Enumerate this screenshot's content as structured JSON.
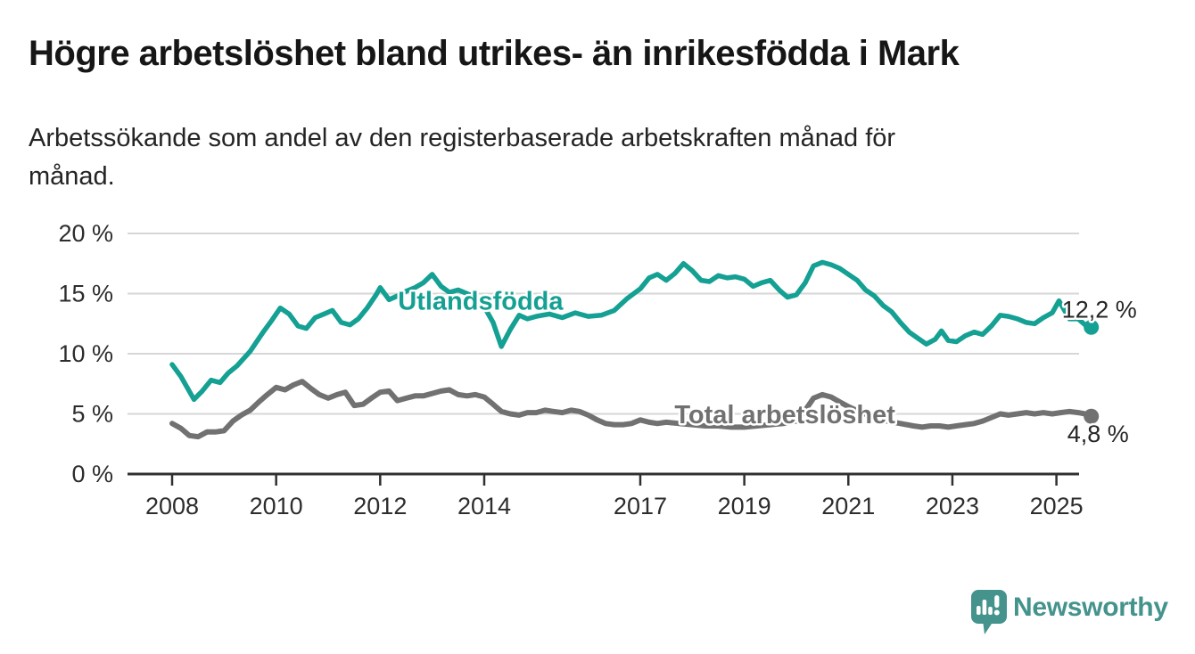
{
  "header": {
    "title": "Högre arbetslöshet bland utrikes- än inrikesfödda i Mark",
    "subtitle_line1": "Arbetssökande som andel av den registerbaserade arbetskraften månad för",
    "subtitle_line2": "månad."
  },
  "chart_data": {
    "type": "line",
    "title": "Högre arbetslöshet bland utrikes- än inrikesfödda i Mark",
    "subtitle": "Arbetssökande som andel av den registerbaserade arbetskraften månad för månad.",
    "xlabel": "",
    "ylabel": "",
    "x_unit": "year (monthly observations)",
    "xlim": [
      2007.5,
      2026.4
    ],
    "ylim": [
      0,
      20
    ],
    "grid": "horizontal",
    "legend_position": "inline-labels",
    "y_ticks": [
      {
        "v": 20,
        "label": "20 %"
      },
      {
        "v": 15,
        "label": "15 %"
      },
      {
        "v": 10,
        "label": "10 %"
      },
      {
        "v": 5,
        "label": "5 %"
      },
      {
        "v": 0,
        "label": "0 %"
      }
    ],
    "x_ticks": [
      {
        "v": 2008,
        "label": "2008"
      },
      {
        "v": 2010,
        "label": "2010"
      },
      {
        "v": 2012,
        "label": "2012"
      },
      {
        "v": 2014,
        "label": "2014"
      },
      {
        "v": 2017,
        "label": "2017"
      },
      {
        "v": 2019,
        "label": "2019"
      },
      {
        "v": 2021,
        "label": "2021"
      },
      {
        "v": 2023,
        "label": "2023"
      },
      {
        "v": 2025,
        "label": "2025"
      }
    ],
    "series": [
      {
        "name": "Utlandsfödda",
        "color": "#14a093",
        "line_width": 5.5,
        "end_value": 12.2,
        "end_label": "12,2 %",
        "inline_label": {
          "text": "Utlandsfödda",
          "x": 2013.93,
          "y": 14.4
        },
        "points": [
          [
            2008.0,
            9.1
          ],
          [
            2008.17,
            8.1
          ],
          [
            2008.42,
            6.2
          ],
          [
            2008.58,
            6.9
          ],
          [
            2008.75,
            7.8
          ],
          [
            2008.92,
            7.6
          ],
          [
            2009.08,
            8.4
          ],
          [
            2009.25,
            9.0
          ],
          [
            2009.5,
            10.2
          ],
          [
            2009.75,
            11.8
          ],
          [
            2009.92,
            12.8
          ],
          [
            2010.08,
            13.8
          ],
          [
            2010.25,
            13.3
          ],
          [
            2010.42,
            12.3
          ],
          [
            2010.58,
            12.1
          ],
          [
            2010.75,
            13.0
          ],
          [
            2010.92,
            13.3
          ],
          [
            2011.08,
            13.6
          ],
          [
            2011.25,
            12.6
          ],
          [
            2011.42,
            12.4
          ],
          [
            2011.58,
            12.9
          ],
          [
            2011.75,
            13.8
          ],
          [
            2011.92,
            14.9
          ],
          [
            2012.0,
            15.5
          ],
          [
            2012.17,
            14.5
          ],
          [
            2012.33,
            14.8
          ],
          [
            2012.5,
            15.2
          ],
          [
            2012.67,
            15.5
          ],
          [
            2012.83,
            15.9
          ],
          [
            2013.0,
            16.6
          ],
          [
            2013.17,
            15.6
          ],
          [
            2013.33,
            15.1
          ],
          [
            2013.5,
            15.3
          ],
          [
            2013.67,
            15.0
          ],
          [
            2013.83,
            14.7
          ],
          [
            2014.0,
            13.9
          ],
          [
            2014.17,
            12.6
          ],
          [
            2014.33,
            10.6
          ],
          [
            2014.5,
            12.0
          ],
          [
            2014.67,
            13.2
          ],
          [
            2014.83,
            12.9
          ],
          [
            2015.0,
            13.1
          ],
          [
            2015.25,
            13.3
          ],
          [
            2015.5,
            13.0
          ],
          [
            2015.75,
            13.4
          ],
          [
            2016.0,
            13.1
          ],
          [
            2016.25,
            13.2
          ],
          [
            2016.5,
            13.6
          ],
          [
            2016.75,
            14.6
          ],
          [
            2017.0,
            15.4
          ],
          [
            2017.17,
            16.3
          ],
          [
            2017.33,
            16.6
          ],
          [
            2017.5,
            16.1
          ],
          [
            2017.67,
            16.7
          ],
          [
            2017.83,
            17.5
          ],
          [
            2018.0,
            16.9
          ],
          [
            2018.17,
            16.1
          ],
          [
            2018.33,
            16.0
          ],
          [
            2018.5,
            16.5
          ],
          [
            2018.67,
            16.3
          ],
          [
            2018.83,
            16.4
          ],
          [
            2019.0,
            16.2
          ],
          [
            2019.17,
            15.6
          ],
          [
            2019.33,
            15.9
          ],
          [
            2019.5,
            16.1
          ],
          [
            2019.67,
            15.3
          ],
          [
            2019.83,
            14.7
          ],
          [
            2020.0,
            14.9
          ],
          [
            2020.17,
            15.9
          ],
          [
            2020.33,
            17.3
          ],
          [
            2020.5,
            17.6
          ],
          [
            2020.67,
            17.4
          ],
          [
            2020.83,
            17.1
          ],
          [
            2021.0,
            16.6
          ],
          [
            2021.17,
            16.1
          ],
          [
            2021.33,
            15.3
          ],
          [
            2021.5,
            14.8
          ],
          [
            2021.67,
            14.0
          ],
          [
            2021.83,
            13.5
          ],
          [
            2022.0,
            12.6
          ],
          [
            2022.17,
            11.8
          ],
          [
            2022.33,
            11.3
          ],
          [
            2022.5,
            10.8
          ],
          [
            2022.67,
            11.2
          ],
          [
            2022.79,
            11.9
          ],
          [
            2022.92,
            11.1
          ],
          [
            2023.08,
            11.0
          ],
          [
            2023.25,
            11.5
          ],
          [
            2023.42,
            11.8
          ],
          [
            2023.58,
            11.6
          ],
          [
            2023.75,
            12.3
          ],
          [
            2023.92,
            13.2
          ],
          [
            2024.08,
            13.1
          ],
          [
            2024.25,
            12.9
          ],
          [
            2024.42,
            12.6
          ],
          [
            2024.58,
            12.5
          ],
          [
            2024.75,
            13.0
          ],
          [
            2024.92,
            13.4
          ],
          [
            2025.05,
            14.4
          ],
          [
            2025.25,
            12.9
          ],
          [
            2025.42,
            12.9
          ],
          [
            2025.55,
            12.4
          ],
          [
            2025.67,
            12.2
          ]
        ]
      },
      {
        "name": "Total arbetslöshet",
        "color": "#717171",
        "line_width": 6,
        "end_value": 4.8,
        "end_label": "4,8 %",
        "inline_label": {
          "text": "Total arbetslöshet",
          "x": 2019.78,
          "y": 4.95
        },
        "points": [
          [
            2008.0,
            4.2
          ],
          [
            2008.17,
            3.8
          ],
          [
            2008.33,
            3.2
          ],
          [
            2008.5,
            3.1
          ],
          [
            2008.67,
            3.5
          ],
          [
            2008.83,
            3.5
          ],
          [
            2009.0,
            3.6
          ],
          [
            2009.17,
            4.4
          ],
          [
            2009.33,
            4.9
          ],
          [
            2009.5,
            5.3
          ],
          [
            2009.67,
            6.0
          ],
          [
            2009.83,
            6.6
          ],
          [
            2010.0,
            7.2
          ],
          [
            2010.17,
            7.0
          ],
          [
            2010.33,
            7.4
          ],
          [
            2010.5,
            7.7
          ],
          [
            2010.67,
            7.1
          ],
          [
            2010.83,
            6.6
          ],
          [
            2011.0,
            6.3
          ],
          [
            2011.17,
            6.6
          ],
          [
            2011.33,
            6.8
          ],
          [
            2011.5,
            5.7
          ],
          [
            2011.67,
            5.8
          ],
          [
            2011.83,
            6.3
          ],
          [
            2012.0,
            6.8
          ],
          [
            2012.17,
            6.9
          ],
          [
            2012.33,
            6.1
          ],
          [
            2012.5,
            6.3
          ],
          [
            2012.67,
            6.5
          ],
          [
            2012.83,
            6.5
          ],
          [
            2013.0,
            6.7
          ],
          [
            2013.17,
            6.9
          ],
          [
            2013.33,
            7.0
          ],
          [
            2013.5,
            6.6
          ],
          [
            2013.67,
            6.5
          ],
          [
            2013.83,
            6.6
          ],
          [
            2014.0,
            6.4
          ],
          [
            2014.17,
            5.8
          ],
          [
            2014.33,
            5.2
          ],
          [
            2014.5,
            5.0
          ],
          [
            2014.67,
            4.9
          ],
          [
            2014.83,
            5.1
          ],
          [
            2015.0,
            5.1
          ],
          [
            2015.17,
            5.3
          ],
          [
            2015.33,
            5.2
          ],
          [
            2015.5,
            5.1
          ],
          [
            2015.67,
            5.3
          ],
          [
            2015.83,
            5.2
          ],
          [
            2016.0,
            4.9
          ],
          [
            2016.17,
            4.5
          ],
          [
            2016.33,
            4.2
          ],
          [
            2016.5,
            4.1
          ],
          [
            2016.67,
            4.1
          ],
          [
            2016.83,
            4.2
          ],
          [
            2017.0,
            4.5
          ],
          [
            2017.17,
            4.3
          ],
          [
            2017.33,
            4.2
          ],
          [
            2017.5,
            4.3
          ],
          [
            2017.75,
            4.2
          ],
          [
            2018.0,
            4.1
          ],
          [
            2018.25,
            4.0
          ],
          [
            2018.5,
            4.0
          ],
          [
            2018.75,
            3.9
          ],
          [
            2019.0,
            3.9
          ],
          [
            2019.25,
            4.0
          ],
          [
            2019.5,
            4.1
          ],
          [
            2019.75,
            4.2
          ],
          [
            2020.0,
            4.4
          ],
          [
            2020.17,
            5.3
          ],
          [
            2020.33,
            6.3
          ],
          [
            2020.5,
            6.6
          ],
          [
            2020.67,
            6.4
          ],
          [
            2020.83,
            6.0
          ],
          [
            2021.0,
            5.6
          ],
          [
            2021.25,
            5.1
          ],
          [
            2021.5,
            4.7
          ],
          [
            2021.75,
            4.4
          ],
          [
            2022.0,
            4.2
          ],
          [
            2022.25,
            4.0
          ],
          [
            2022.42,
            3.9
          ],
          [
            2022.58,
            4.0
          ],
          [
            2022.75,
            4.0
          ],
          [
            2022.92,
            3.9
          ],
          [
            2023.08,
            4.0
          ],
          [
            2023.25,
            4.1
          ],
          [
            2023.42,
            4.2
          ],
          [
            2023.58,
            4.4
          ],
          [
            2023.75,
            4.7
          ],
          [
            2023.92,
            5.0
          ],
          [
            2024.08,
            4.9
          ],
          [
            2024.25,
            5.0
          ],
          [
            2024.42,
            5.1
          ],
          [
            2024.58,
            5.0
          ],
          [
            2024.75,
            5.1
          ],
          [
            2024.92,
            5.0
          ],
          [
            2025.08,
            5.1
          ],
          [
            2025.25,
            5.2
          ],
          [
            2025.42,
            5.1
          ],
          [
            2025.55,
            5.0
          ],
          [
            2025.67,
            4.8
          ]
        ]
      }
    ]
  },
  "footer": {
    "brand": "Newsworthy",
    "brand_color": "#44938c",
    "logo_icon": "newsworthy-speech-bubble-bar-chart-icon"
  }
}
